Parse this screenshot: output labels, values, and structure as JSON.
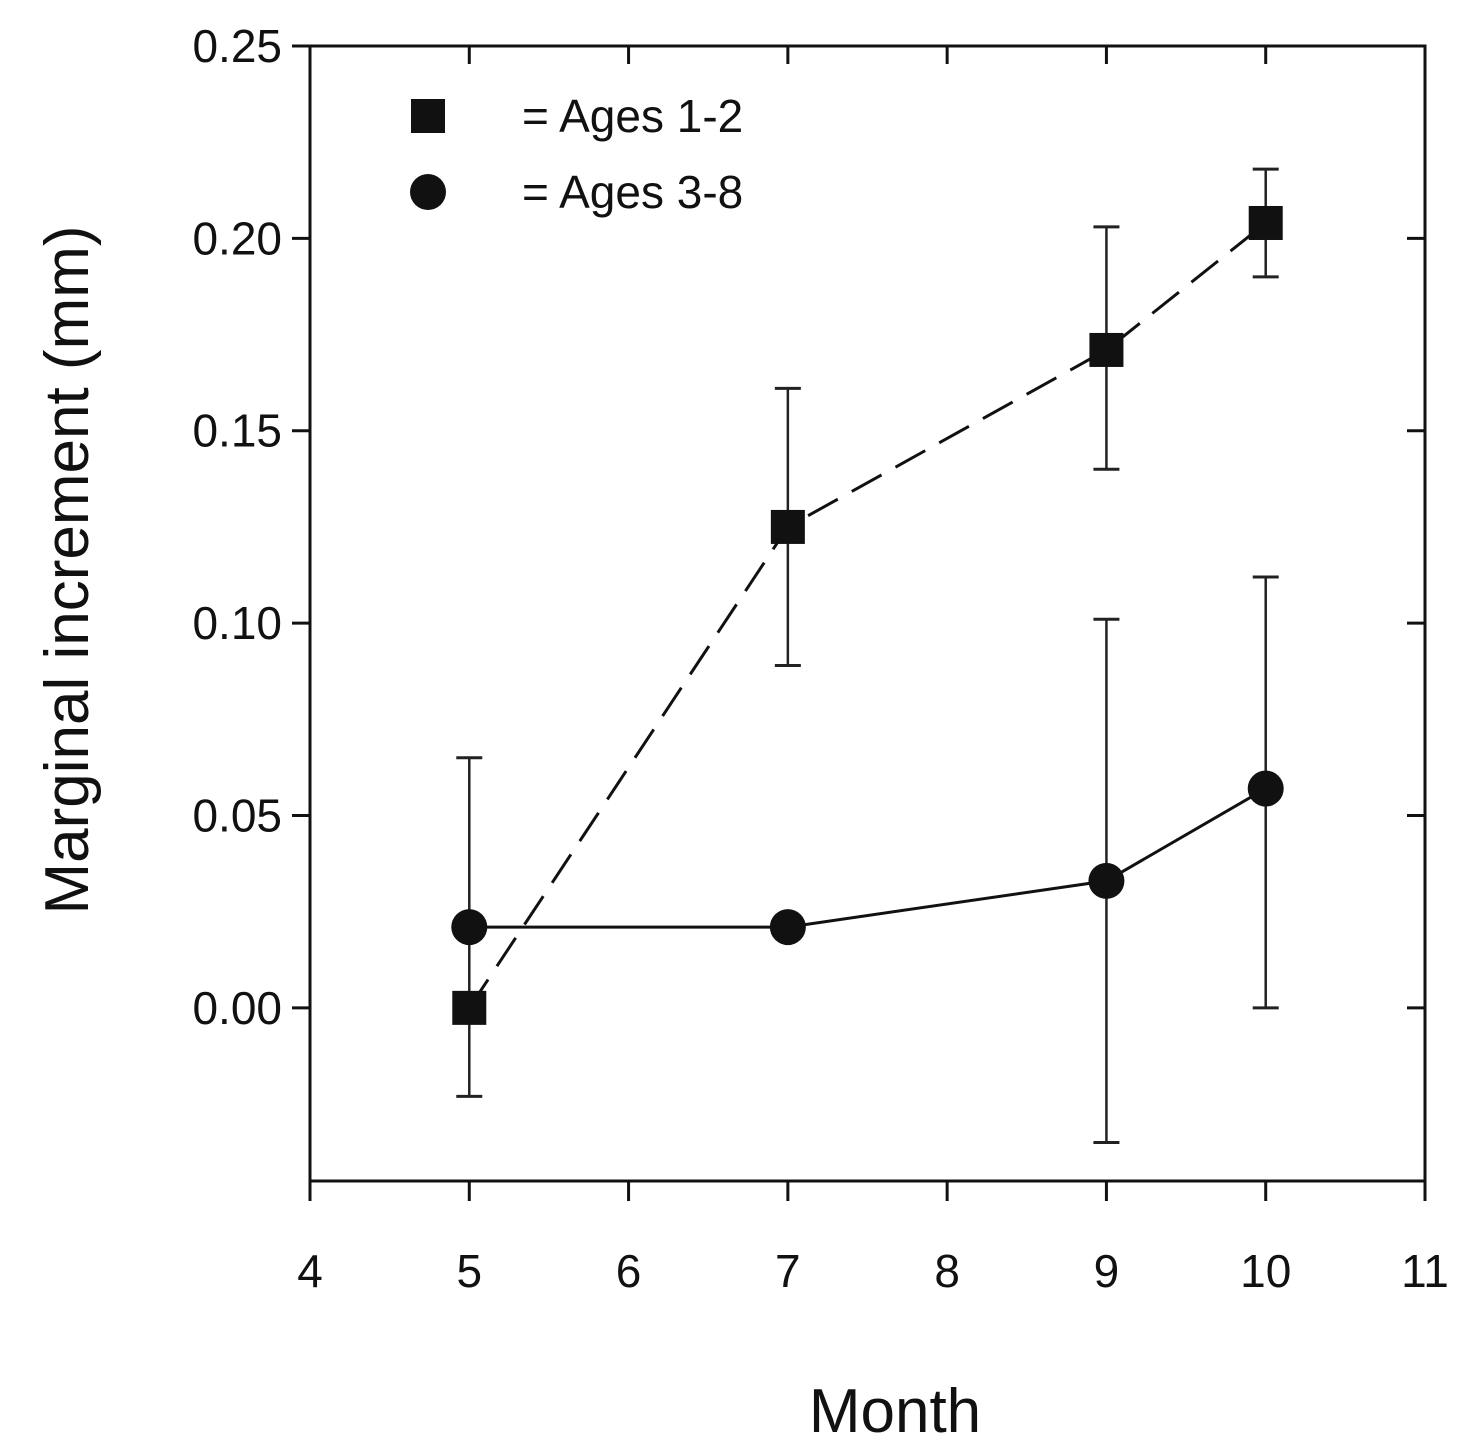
{
  "chart_data": {
    "type": "scatter",
    "xlabel": "Month",
    "ylabel": "Marginal increment (mm)",
    "xlim": [
      4,
      11
    ],
    "ylim": [
      -0.045,
      0.25
    ],
    "x_ticks": [
      4,
      5,
      6,
      7,
      8,
      9,
      10,
      11
    ],
    "y_ticks": [
      "0.00",
      "0.05",
      "0.10",
      "0.15",
      "0.20",
      "0.25"
    ],
    "grid": false,
    "legend_position": "top-left",
    "series": [
      {
        "name": "= Ages 1-2",
        "marker": "square",
        "line_style": "dashed",
        "color": "#111111",
        "points": [
          {
            "x": 5,
            "y": 0.0,
            "err_low": -0.023,
            "err_high": 0.065
          },
          {
            "x": 7,
            "y": 0.125,
            "err_low": 0.089,
            "err_high": 0.161
          },
          {
            "x": 9,
            "y": 0.171,
            "err_low": 0.14,
            "err_high": 0.203
          },
          {
            "x": 10,
            "y": 0.204,
            "err_low": 0.19,
            "err_high": 0.218
          }
        ]
      },
      {
        "name": "= Ages 3-8",
        "marker": "circle",
        "line_style": "solid",
        "color": "#111111",
        "points": [
          {
            "x": 5,
            "y": 0.021,
            "err_low": null,
            "err_high": null
          },
          {
            "x": 7,
            "y": 0.021,
            "err_low": null,
            "err_high": null
          },
          {
            "x": 9,
            "y": 0.033,
            "err_low": -0.035,
            "err_high": 0.101
          },
          {
            "x": 10,
            "y": 0.057,
            "err_low": 0.0,
            "err_high": 0.112
          }
        ]
      }
    ]
  }
}
